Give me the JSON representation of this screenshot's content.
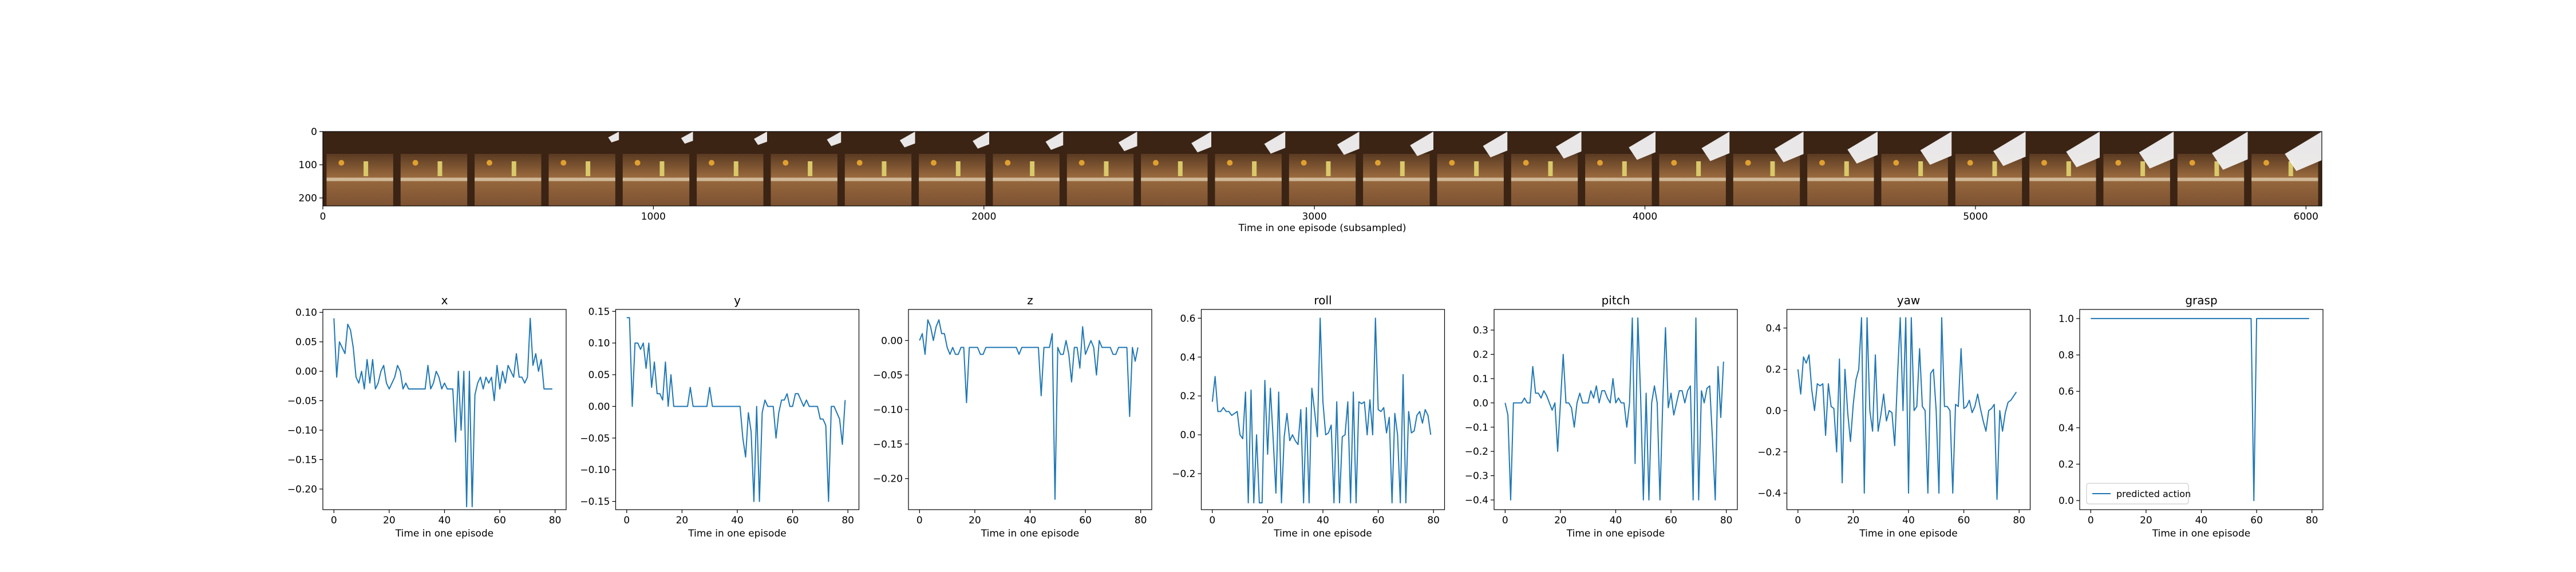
{
  "colors": {
    "line": "#1f77b4",
    "axes": "#000000",
    "background": "#ffffff"
  },
  "filmstrip": {
    "xlabel": "Time in one episode (subsampled)",
    "x_ticks": [
      "0",
      "1000",
      "2000",
      "3000",
      "4000",
      "5000",
      "6000"
    ],
    "y_ticks": [
      "0",
      "100",
      "200"
    ],
    "frame_count": 27,
    "x_range": [
      0,
      6048
    ],
    "y_range": [
      0,
      224
    ]
  },
  "chart_data": [
    {
      "type": "line",
      "title": "x",
      "xlabel": "Time in one episode",
      "ylabel": "",
      "xlim": [
        -4,
        84
      ],
      "ylim": [
        -0.235,
        0.105
      ],
      "x_ticks": [
        0,
        20,
        40,
        60,
        80
      ],
      "y_ticks": [
        0.1,
        0.05,
        0.0,
        -0.05,
        -0.1,
        -0.15,
        -0.2
      ],
      "y_tick_labels": [
        "0.10",
        "0.05",
        "0.00",
        "−0.05",
        "−0.10",
        "−0.15",
        "−0.20"
      ],
      "series": [
        {
          "values": [
            0.09,
            -0.01,
            0.05,
            0.04,
            0.03,
            0.08,
            0.07,
            0.04,
            -0.01,
            -0.02,
            0.0,
            -0.03,
            0.02,
            -0.02,
            0.02,
            -0.03,
            -0.02,
            0.0,
            0.01,
            -0.02,
            -0.03,
            -0.02,
            -0.01,
            0.01,
            0.0,
            -0.03,
            -0.02,
            -0.03,
            -0.03,
            -0.03,
            -0.03,
            -0.03,
            -0.03,
            -0.03,
            0.01,
            -0.03,
            -0.02,
            0.0,
            -0.01,
            -0.03,
            -0.02,
            -0.03,
            -0.03,
            -0.03,
            -0.12,
            0.0,
            -0.1,
            0.0,
            -0.23,
            0.0,
            -0.23,
            -0.04,
            -0.02,
            -0.01,
            -0.03,
            -0.01,
            -0.02,
            -0.01,
            -0.05,
            0.01,
            -0.03,
            0.0,
            -0.02,
            0.01,
            0.0,
            -0.01,
            0.03,
            -0.01,
            -0.01,
            -0.02,
            -0.01,
            0.09,
            0.01,
            0.03,
            0.0,
            0.02,
            -0.03,
            -0.03,
            -0.03,
            -0.03
          ]
        }
      ]
    },
    {
      "type": "line",
      "title": "y",
      "xlabel": "Time in one episode",
      "ylabel": "",
      "xlim": [
        -4,
        84
      ],
      "ylim": [
        -0.163,
        0.153
      ],
      "x_ticks": [
        0,
        20,
        40,
        60,
        80
      ],
      "y_ticks": [
        0.15,
        0.1,
        0.05,
        0.0,
        -0.05,
        -0.1,
        -0.15
      ],
      "y_tick_labels": [
        "0.15",
        "0.10",
        "0.05",
        "0.00",
        "−0.05",
        "−0.10",
        "−0.15"
      ],
      "series": [
        {
          "values": [
            0.14,
            0.14,
            0.0,
            0.1,
            0.1,
            0.09,
            0.1,
            0.06,
            0.1,
            0.03,
            0.07,
            0.02,
            0.02,
            0.01,
            0.07,
            0.0,
            0.05,
            0.0,
            0.0,
            0.0,
            0.0,
            0.0,
            0.0,
            0.03,
            0.0,
            0.0,
            0.0,
            0.0,
            0.0,
            0.0,
            0.03,
            0.0,
            0.0,
            0.0,
            0.0,
            0.0,
            0.0,
            0.0,
            0.0,
            0.0,
            0.0,
            0.0,
            -0.05,
            -0.08,
            -0.01,
            -0.04,
            -0.15,
            0.0,
            -0.15,
            -0.01,
            0.01,
            0.0,
            0.0,
            0.0,
            -0.05,
            -0.01,
            0.01,
            0.01,
            0.02,
            0.0,
            0.0,
            0.02,
            0.02,
            0.01,
            0.0,
            0.01,
            0.0,
            0.0,
            0.0,
            0.0,
            -0.02,
            -0.02,
            -0.03,
            -0.15,
            0.0,
            0.0,
            -0.01,
            -0.02,
            -0.06,
            0.01
          ]
        }
      ]
    },
    {
      "type": "line",
      "title": "z",
      "xlabel": "Time in one episode",
      "ylabel": "",
      "xlim": [
        -4,
        84
      ],
      "ylim": [
        -0.245,
        0.045
      ],
      "x_ticks": [
        0,
        20,
        40,
        60,
        80
      ],
      "y_ticks": [
        0.0,
        -0.05,
        -0.1,
        -0.15,
        -0.2
      ],
      "y_tick_labels": [
        "0.00",
        "−0.05",
        "−0.10",
        "−0.15",
        "−0.20"
      ],
      "series": [
        {
          "values": [
            0.0,
            0.01,
            -0.02,
            0.03,
            0.02,
            0.0,
            0.02,
            0.03,
            0.01,
            0.01,
            -0.01,
            -0.02,
            -0.01,
            -0.02,
            -0.02,
            -0.01,
            -0.01,
            -0.09,
            -0.01,
            -0.01,
            -0.01,
            -0.01,
            -0.02,
            -0.02,
            -0.01,
            -0.01,
            -0.01,
            -0.01,
            -0.01,
            -0.01,
            -0.01,
            -0.01,
            -0.01,
            -0.01,
            -0.01,
            -0.01,
            -0.02,
            -0.01,
            -0.01,
            -0.01,
            -0.01,
            -0.01,
            -0.01,
            -0.01,
            -0.08,
            -0.01,
            -0.01,
            -0.01,
            0.01,
            -0.23,
            -0.01,
            -0.02,
            -0.02,
            0.0,
            -0.02,
            -0.06,
            -0.01,
            -0.01,
            -0.04,
            0.02,
            -0.02,
            -0.01,
            0.0,
            -0.01,
            -0.05,
            0.0,
            -0.01,
            -0.01,
            -0.01,
            -0.01,
            -0.02,
            -0.02,
            -0.01,
            -0.01,
            -0.01,
            -0.01,
            -0.11,
            -0.01,
            -0.03,
            -0.01
          ]
        }
      ]
    },
    {
      "type": "line",
      "title": "roll",
      "xlabel": "Time in one episode",
      "ylabel": "",
      "xlim": [
        -4,
        84
      ],
      "ylim": [
        -0.385,
        0.645
      ],
      "x_ticks": [
        0,
        20,
        40,
        60,
        80
      ],
      "y_ticks": [
        0.6,
        0.4,
        0.2,
        0.0,
        -0.2
      ],
      "y_tick_labels": [
        "0.6",
        "0.4",
        "0.2",
        "0.0",
        "−0.2"
      ],
      "series": [
        {
          "values": [
            0.17,
            0.3,
            0.12,
            0.12,
            0.14,
            0.12,
            0.12,
            0.1,
            0.11,
            0.12,
            0.0,
            -0.02,
            0.22,
            -0.35,
            0.23,
            -0.35,
            0.0,
            -0.35,
            -0.35,
            0.28,
            -0.1,
            0.24,
            -0.02,
            -0.3,
            0.22,
            -0.35,
            -0.01,
            0.11,
            -0.03,
            0.0,
            -0.03,
            -0.05,
            0.13,
            -0.35,
            0.14,
            -0.35,
            0.24,
            0.12,
            -0.01,
            0.6,
            0.17,
            0.0,
            0.01,
            0.05,
            -0.35,
            0.17,
            -0.35,
            -0.01,
            0.0,
            0.17,
            -0.35,
            0.22,
            -0.35,
            0.17,
            0.16,
            0.17,
            0.0,
            0.18,
            0.0,
            0.6,
            0.13,
            0.12,
            0.14,
            0.01,
            0.09,
            -0.35,
            0.11,
            0.0,
            -0.35,
            0.31,
            -0.35,
            0.12,
            0.01,
            0.02,
            0.1,
            0.12,
            0.06,
            0.13,
            0.1,
            0.0
          ]
        }
      ]
    },
    {
      "type": "line",
      "title": "pitch",
      "xlabel": "Time in one episode",
      "ylabel": "",
      "xlim": [
        -4,
        84
      ],
      "ylim": [
        -0.44,
        0.385
      ],
      "x_ticks": [
        0,
        20,
        40,
        60,
        80
      ],
      "y_ticks": [
        0.3,
        0.2,
        0.1,
        0.0,
        -0.1,
        -0.2,
        -0.3,
        -0.4
      ],
      "y_tick_labels": [
        "0.3",
        "0.2",
        "0.1",
        "0.0",
        "−0.1",
        "−0.2",
        "−0.3",
        "−0.4"
      ],
      "series": [
        {
          "values": [
            0.0,
            -0.05,
            -0.4,
            0.0,
            0.0,
            0.0,
            0.0,
            0.02,
            0.0,
            0.0,
            0.15,
            0.04,
            0.04,
            0.02,
            0.05,
            0.03,
            0.0,
            -0.03,
            0.0,
            -0.2,
            0.0,
            0.2,
            0.0,
            0.0,
            -0.02,
            -0.1,
            0.0,
            0.04,
            0.0,
            0.0,
            0.0,
            0.05,
            0.02,
            0.07,
            0.0,
            0.05,
            0.05,
            0.02,
            0.0,
            0.1,
            0.0,
            0.02,
            0.0,
            0.0,
            -0.1,
            0.0,
            0.35,
            -0.25,
            0.35,
            0.03,
            -0.4,
            0.04,
            -0.4,
            0.0,
            0.07,
            0.0,
            -0.4,
            0.0,
            0.31,
            -0.02,
            0.04,
            -0.05,
            0.0,
            0.05,
            0.05,
            0.0,
            0.05,
            0.07,
            -0.4,
            0.35,
            -0.4,
            0.05,
            0.0,
            0.06,
            0.07,
            -0.15,
            -0.4,
            0.15,
            -0.06,
            0.17
          ]
        }
      ]
    },
    {
      "type": "line",
      "title": "yaw",
      "xlabel": "Time in one episode",
      "ylabel": "",
      "xlim": [
        -4,
        84
      ],
      "ylim": [
        -0.48,
        0.49
      ],
      "x_ticks": [
        0,
        20,
        40,
        60,
        80
      ],
      "y_ticks": [
        0.4,
        0.2,
        0.0,
        -0.2,
        -0.4
      ],
      "y_tick_labels": [
        "0.4",
        "0.2",
        "0.0",
        "−0.2",
        "−0.4"
      ],
      "series": [
        {
          "values": [
            0.2,
            0.08,
            0.26,
            0.23,
            0.27,
            0.1,
            0.0,
            0.13,
            0.12,
            0.13,
            -0.12,
            0.13,
            0.02,
            0.01,
            -0.2,
            0.25,
            -0.35,
            0.2,
            -0.01,
            -0.15,
            0.03,
            0.15,
            0.2,
            0.45,
            -0.4,
            0.45,
            0.0,
            -0.1,
            0.27,
            -0.1,
            -0.02,
            0.08,
            -0.05,
            0.0,
            -0.01,
            -0.17,
            0.16,
            0.45,
            0.0,
            0.45,
            -0.4,
            0.45,
            0.0,
            0.02,
            0.3,
            0.02,
            0.0,
            -0.4,
            0.18,
            0.2,
            0.0,
            -0.4,
            0.45,
            0.02,
            0.02,
            0.0,
            -0.4,
            0.03,
            0.02,
            0.3,
            0.01,
            0.02,
            0.05,
            -0.01,
            0.02,
            0.08,
            0.01,
            -0.05,
            -0.1,
            0.0,
            0.01,
            0.03,
            -0.43,
            0.0,
            -0.1,
            -0.01,
            0.04,
            0.05,
            0.07,
            0.09
          ]
        }
      ]
    },
    {
      "type": "line",
      "title": "grasp",
      "xlabel": "Time in one episode",
      "ylabel": "",
      "xlim": [
        -4,
        84
      ],
      "ylim": [
        -0.05,
        1.05
      ],
      "x_ticks": [
        0,
        20,
        40,
        60,
        80
      ],
      "y_ticks": [
        1.0,
        0.8,
        0.6,
        0.4,
        0.2,
        0.0
      ],
      "y_tick_labels": [
        "1.0",
        "0.8",
        "0.6",
        "0.4",
        "0.2",
        "0.0"
      ],
      "legend": {
        "label": "predicted action",
        "position": "lower-left"
      },
      "series": [
        {
          "name": "predicted action",
          "x": [
            0,
            1,
            58,
            59,
            60,
            79
          ],
          "values": [
            1.0,
            1.0,
            1.0,
            0.0,
            1.0,
            1.0
          ]
        }
      ]
    }
  ]
}
